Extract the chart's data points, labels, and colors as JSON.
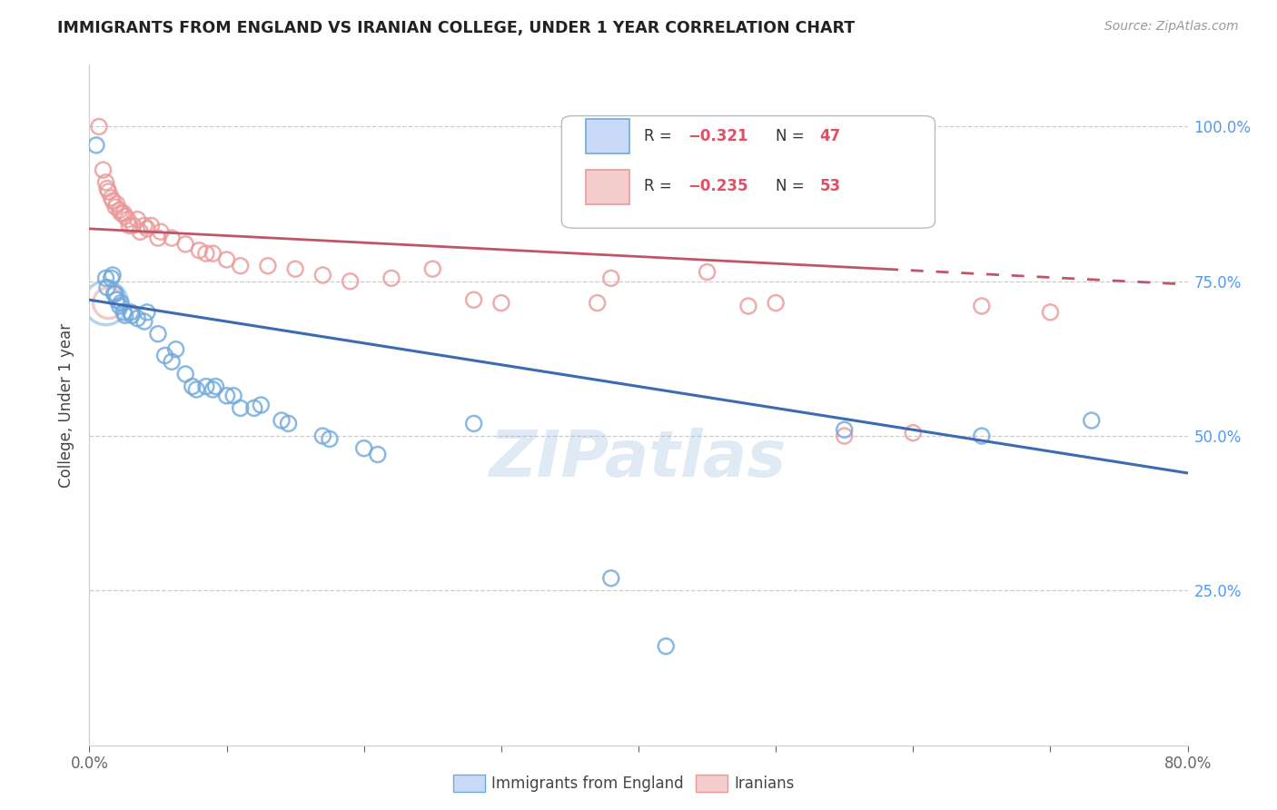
{
  "title": "IMMIGRANTS FROM ENGLAND VS IRANIAN COLLEGE, UNDER 1 YEAR CORRELATION CHART",
  "source": "Source: ZipAtlas.com",
  "ylabel_label": "College, Under 1 year",
  "xmin": 0.0,
  "xmax": 0.8,
  "ymin": 0.0,
  "ymax": 1.1,
  "watermark": "ZIPatlas",
  "blue_color": "#6fa8dc",
  "pink_color": "#ea9999",
  "blue_fill": "#c9daf8",
  "pink_fill": "#f4cccc",
  "blue_scatter": [
    [
      0.005,
      0.97
    ],
    [
      0.012,
      0.755
    ],
    [
      0.013,
      0.74
    ],
    [
      0.016,
      0.755
    ],
    [
      0.017,
      0.76
    ],
    [
      0.018,
      0.73
    ],
    [
      0.019,
      0.73
    ],
    [
      0.02,
      0.72
    ],
    [
      0.022,
      0.71
    ],
    [
      0.023,
      0.715
    ],
    [
      0.025,
      0.7
    ],
    [
      0.026,
      0.695
    ],
    [
      0.03,
      0.7
    ],
    [
      0.031,
      0.695
    ],
    [
      0.035,
      0.69
    ],
    [
      0.04,
      0.685
    ],
    [
      0.042,
      0.7
    ],
    [
      0.05,
      0.665
    ],
    [
      0.055,
      0.63
    ],
    [
      0.06,
      0.62
    ],
    [
      0.063,
      0.64
    ],
    [
      0.07,
      0.6
    ],
    [
      0.075,
      0.58
    ],
    [
      0.078,
      0.575
    ],
    [
      0.085,
      0.58
    ],
    [
      0.09,
      0.575
    ],
    [
      0.092,
      0.58
    ],
    [
      0.1,
      0.565
    ],
    [
      0.105,
      0.565
    ],
    [
      0.11,
      0.545
    ],
    [
      0.12,
      0.545
    ],
    [
      0.125,
      0.55
    ],
    [
      0.14,
      0.525
    ],
    [
      0.145,
      0.52
    ],
    [
      0.17,
      0.5
    ],
    [
      0.175,
      0.495
    ],
    [
      0.2,
      0.48
    ],
    [
      0.21,
      0.47
    ],
    [
      0.28,
      0.52
    ],
    [
      0.38,
      0.27
    ],
    [
      0.42,
      0.16
    ],
    [
      0.55,
      0.51
    ],
    [
      0.65,
      0.5
    ],
    [
      0.73,
      0.525
    ]
  ],
  "pink_scatter": [
    [
      0.007,
      1.0
    ],
    [
      0.01,
      0.93
    ],
    [
      0.012,
      0.91
    ],
    [
      0.013,
      0.9
    ],
    [
      0.014,
      0.895
    ],
    [
      0.016,
      0.885
    ],
    [
      0.017,
      0.88
    ],
    [
      0.019,
      0.87
    ],
    [
      0.02,
      0.875
    ],
    [
      0.022,
      0.865
    ],
    [
      0.023,
      0.86
    ],
    [
      0.025,
      0.86
    ],
    [
      0.026,
      0.855
    ],
    [
      0.028,
      0.85
    ],
    [
      0.029,
      0.84
    ],
    [
      0.032,
      0.84
    ],
    [
      0.035,
      0.85
    ],
    [
      0.037,
      0.83
    ],
    [
      0.04,
      0.84
    ],
    [
      0.042,
      0.835
    ],
    [
      0.045,
      0.84
    ],
    [
      0.05,
      0.82
    ],
    [
      0.052,
      0.83
    ],
    [
      0.06,
      0.82
    ],
    [
      0.07,
      0.81
    ],
    [
      0.08,
      0.8
    ],
    [
      0.085,
      0.795
    ],
    [
      0.09,
      0.795
    ],
    [
      0.1,
      0.785
    ],
    [
      0.11,
      0.775
    ],
    [
      0.13,
      0.775
    ],
    [
      0.15,
      0.77
    ],
    [
      0.17,
      0.76
    ],
    [
      0.19,
      0.75
    ],
    [
      0.22,
      0.755
    ],
    [
      0.25,
      0.77
    ],
    [
      0.28,
      0.72
    ],
    [
      0.3,
      0.715
    ],
    [
      0.37,
      0.715
    ],
    [
      0.38,
      0.755
    ],
    [
      0.45,
      0.765
    ],
    [
      0.48,
      0.71
    ],
    [
      0.5,
      0.715
    ],
    [
      0.55,
      0.5
    ],
    [
      0.6,
      0.505
    ],
    [
      0.65,
      0.71
    ],
    [
      0.7,
      0.7
    ]
  ],
  "blue_line": {
    "x0": 0.0,
    "y0": 0.72,
    "x1": 0.8,
    "y1": 0.44
  },
  "pink_line": {
    "x0": 0.0,
    "y0": 0.835,
    "x1": 0.8,
    "y1": 0.745
  },
  "pink_line_solid_end": 0.58,
  "pink_line_dashed_start": 0.58,
  "ytick_positions": [
    0.0,
    0.25,
    0.5,
    0.75,
    1.0
  ],
  "ytick_labels_right": [
    "",
    "25.0%",
    "50.0%",
    "75.0%",
    "100.0%"
  ],
  "legend_r_blue": "R = −0.321",
  "legend_n_blue": "N = 47",
  "legend_r_pink": "R = −0.235",
  "legend_n_pink": "N = 53"
}
